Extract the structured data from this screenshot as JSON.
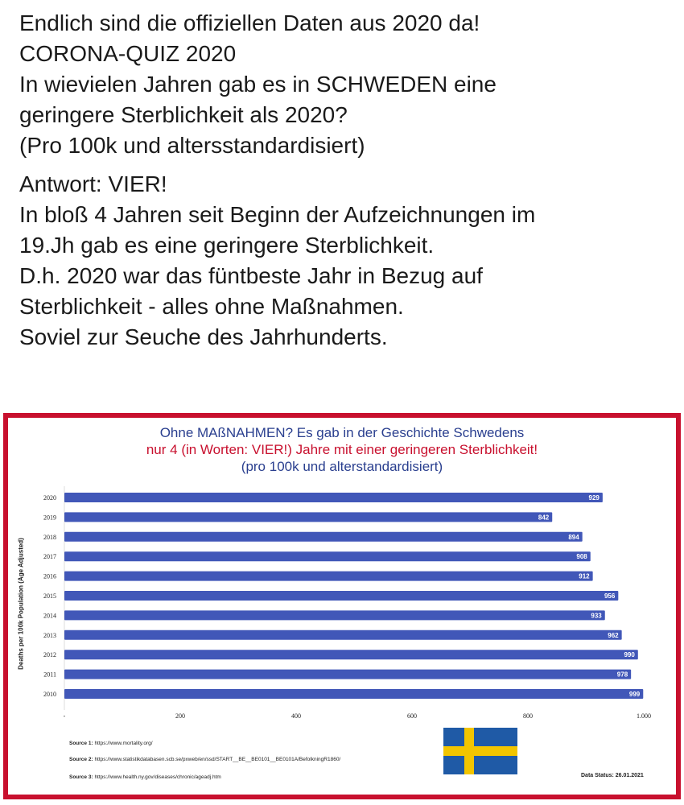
{
  "post": {
    "lines": [
      "Endlich sind die offiziellen Daten aus 2020 da!",
      "CORONA-QUIZ 2020",
      "In wievielen Jahren gab es in SCHWEDEN eine",
      "geringere Sterblichkeit als 2020?",
      "(Pro 100k und altersstandardisiert)"
    ],
    "answer_lines": [
      "Antwort: VIER!",
      "In bloß 4 Jahren seit Beginn der Aufzeichnungen im",
      "19.Jh gab es eine geringere Sterblichkeit.",
      "D.h. 2020 war das füntbeste Jahr in Bezug auf",
      "Sterblichkeit - alles ohne Maßnahmen.",
      "Soviel zur Seuche des Jahrhunderts."
    ]
  },
  "chart_data": {
    "type": "bar",
    "orientation": "horizontal",
    "title_line1": "Ohne MAßNAHMEN? Es gab in der Geschichte Schwedens",
    "title_line2": "nur 4 (in Worten: VIER!) Jahre mit einer geringeren Sterblichkeit!",
    "title_line3": "(pro 100k und alterstandardisiert)",
    "ylabel": "Deaths per 100k Population (Age Adjusted)",
    "categories": [
      "2020",
      "2019",
      "2018",
      "2017",
      "2016",
      "2015",
      "2014",
      "2013",
      "2012",
      "2011",
      "2010"
    ],
    "values": [
      929,
      842,
      894,
      908,
      912,
      956,
      933,
      962,
      990,
      978,
      999
    ],
    "xlim": [
      0,
      1000
    ],
    "x_ticks": [
      {
        "value": 0,
        "label": "-"
      },
      {
        "value": 200,
        "label": "200"
      },
      {
        "value": 400,
        "label": "400"
      },
      {
        "value": 600,
        "label": "600"
      },
      {
        "value": 800,
        "label": "800"
      },
      {
        "value": 1000,
        "label": "1.000"
      }
    ],
    "bar_color": "#4157b8"
  },
  "sources": [
    {
      "label": "Source 1:",
      "text": "https://www.mortality.org/"
    },
    {
      "label": "Source 2:",
      "text": "https://www.statistikdatabasen.scb.se/pxweb/en/ssd/START__BE__BE0101__BE0101A/BefolkningR1860/"
    },
    {
      "label": "Source 3:",
      "text": "https://www.health.ny.gov/diseases/chronic/ageadj.htm"
    }
  ],
  "data_status": "Data Status: 26.01.2021",
  "flag": {
    "blue": "#1f5aa6",
    "yellow": "#f2c500"
  }
}
